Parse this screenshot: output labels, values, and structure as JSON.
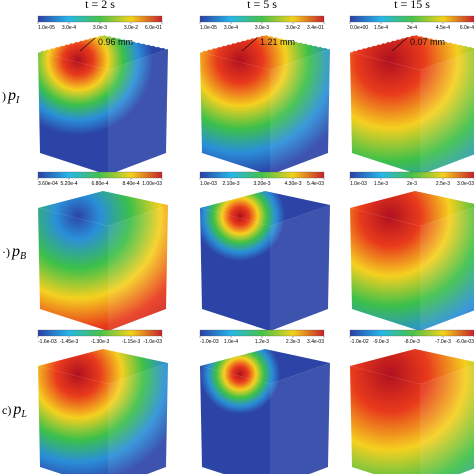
{
  "columns": [
    "t = 2 s",
    "t = 5 s",
    "t = 15 s"
  ],
  "rows": [
    {
      "prefix": ")",
      "symbol": "p",
      "sub": "I",
      "panels": [
        {
          "ticks": [
            "1.0e-05",
            "3.0e-4",
            "3.0e-3",
            "3.0e-2",
            "6.0e-01"
          ],
          "annotation": "0.96 mm"
        },
        {
          "ticks": [
            "1.0e-05",
            "3.0e-4",
            "3.0e-3",
            "3.0e-2",
            "3.4e-01"
          ],
          "annotation": "1.21 mm"
        },
        {
          "ticks": [
            "0.0e+00",
            "1.5e-4",
            "3e-4",
            "4.5e-4",
            "6.0e-4"
          ],
          "annotation": "0.07 mm"
        }
      ]
    },
    {
      "prefix": "·)",
      "symbol": "p",
      "sub": "B",
      "panels": [
        {
          "ticks": [
            "3.60e-04",
            "5.20e-4",
            "6.80e-4",
            "8.40e-4",
            "1.00e-03"
          ]
        },
        {
          "ticks": [
            "1.0e-03",
            "2.10e-3",
            "3.20e-3",
            "4.30e-3",
            "5.4e-03"
          ]
        },
        {
          "ticks": [
            "1.0e-03",
            "1.5e-3",
            "2e-3",
            "2.5e-3",
            "3.0e-03"
          ]
        }
      ]
    },
    {
      "prefix": "c)",
      "symbol": "p",
      "sub": "L",
      "panels": [
        {
          "ticks": [
            "-1.6e-03",
            "-1.45e-3",
            "-1.30e-3",
            "-1.15e-3",
            "-1.0e-03"
          ]
        },
        {
          "ticks": [
            "-1.0e-03",
            "1.0e-4",
            "1.2e-3",
            "2.3e-3",
            "3.4e-03"
          ]
        },
        {
          "ticks": [
            "-1.0e-02",
            "-9.0e-3",
            "-8.0e-3",
            "-7.0e-3",
            "-6.0e-03"
          ]
        }
      ]
    }
  ]
}
